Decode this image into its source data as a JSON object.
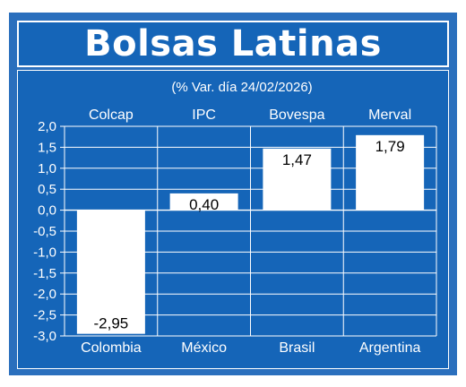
{
  "title": "Bolsas Latinas",
  "colors": {
    "background": "#1565b8",
    "frame": "#2a6fbd",
    "bar": "#ffffff",
    "text": "#ffffff",
    "label_text": "#000000"
  },
  "chart_data": {
    "type": "bar",
    "title": "Bolsas Latinas",
    "subtitle": "(% Var. día 24/02/2026)",
    "categories": [
      "Colombia",
      "México",
      "Brasil",
      "Argentina"
    ],
    "index_names": [
      "Colcap",
      "IPC",
      "Bovespa",
      "Merval"
    ],
    "values": [
      -2.95,
      0.4,
      1.47,
      1.79
    ],
    "value_labels": [
      "-2,95",
      "0,40",
      "1,47",
      "1,79"
    ],
    "ylim": [
      -3.0,
      2.0
    ],
    "yticks": [
      2.0,
      1.5,
      1.0,
      0.5,
      0.0,
      -0.5,
      -1.0,
      -1.5,
      -2.0,
      -2.5,
      -3.0
    ],
    "ytick_labels": [
      "2,0",
      "1,5",
      "1,0",
      "0,5",
      "0,0",
      "-0,5",
      "-1,0",
      "-1,5",
      "-2,0",
      "-2,5",
      "-3,0"
    ],
    "grid": true,
    "xlabel": "",
    "ylabel": ""
  }
}
